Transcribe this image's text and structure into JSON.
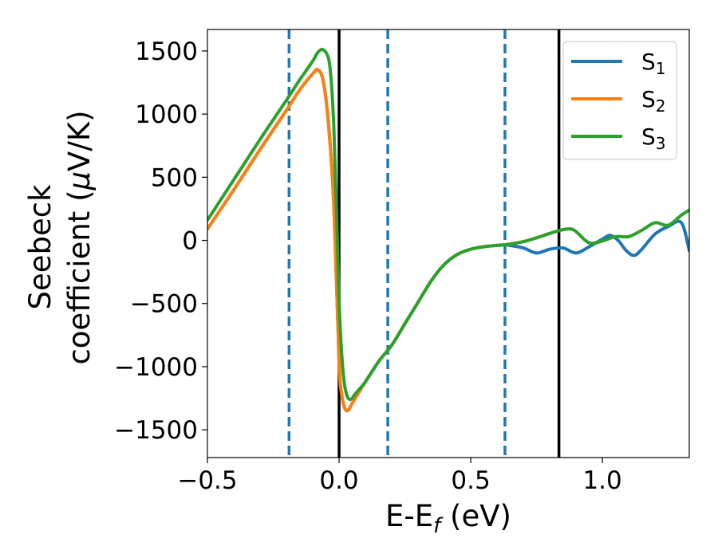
{
  "chart_data": {
    "type": "line",
    "xlabel": "E-E",
    "xlabel_sub": "f",
    "xlabel_unit": " (eV)",
    "ylabel_line1": "Seebeck",
    "ylabel_line2": "coefficient  (",
    "ylabel_mu": "μ",
    "ylabel_unit": "V/K)",
    "xlim": [
      -0.5,
      1.33
    ],
    "ylim": [
      -1720,
      1670
    ],
    "xticks": [
      -0.5,
      0.0,
      0.5,
      1.0
    ],
    "xtick_labels": [
      "−0.5",
      "0.0",
      "0.5",
      "1.0"
    ],
    "yticks": [
      -1500,
      -1000,
      -500,
      0,
      500,
      1000,
      1500
    ],
    "ytick_labels": [
      "−1500",
      "−1000",
      "−500",
      "0",
      "500",
      "1000",
      "1500"
    ],
    "grid": false,
    "legend_position": "top-right",
    "vlines_dashed": [
      -0.19,
      0.185,
      0.63
    ],
    "vlines_solid": [
      0.0,
      0.835
    ],
    "vline_dashed_color": "#1f77b4",
    "vline_solid_color": "#000000",
    "series": [
      {
        "name": "S",
        "sub": "1",
        "color": "#1f77b4",
        "x": [
          -0.5,
          -0.4,
          -0.3,
          -0.2,
          -0.15,
          -0.1,
          -0.08,
          -0.06,
          -0.04,
          -0.02,
          0.0,
          0.01,
          0.02,
          0.03,
          0.04,
          0.05,
          0.1,
          0.15,
          0.2,
          0.25,
          0.3,
          0.35,
          0.4,
          0.45,
          0.5,
          0.55,
          0.6,
          0.63,
          0.65,
          0.7,
          0.75,
          0.8,
          0.85,
          0.9,
          0.95,
          1.0,
          1.03,
          1.06,
          1.09,
          1.12,
          1.15,
          1.2,
          1.25,
          1.3,
          1.33
        ],
        "y": [
          90,
          400,
          720,
          1030,
          1190,
          1320,
          1350,
          1260,
          920,
          280,
          -960,
          -1220,
          -1320,
          -1350,
          -1330,
          -1290,
          -1120,
          -960,
          -830,
          -660,
          -490,
          -320,
          -190,
          -110,
          -70,
          -50,
          -40,
          -35,
          -40,
          -60,
          -100,
          -70,
          -60,
          -100,
          -50,
          10,
          40,
          0,
          -80,
          -120,
          -70,
          50,
          110,
          140,
          -80
        ]
      },
      {
        "name": "S",
        "sub": "2",
        "color": "#ff7f0e",
        "x": [
          -0.5,
          -0.4,
          -0.3,
          -0.2,
          -0.15,
          -0.1,
          -0.08,
          -0.06,
          -0.04,
          -0.02,
          0.0,
          0.01,
          0.02,
          0.03,
          0.04,
          0.05,
          0.1,
          0.15,
          0.2,
          0.25,
          0.3,
          0.35,
          0.4,
          0.45,
          0.5,
          0.55,
          0.6,
          0.63,
          0.7,
          0.75,
          0.8,
          0.85,
          0.88,
          0.9,
          0.95,
          1.0
        ],
        "y": [
          90,
          400,
          720,
          1030,
          1190,
          1320,
          1350,
          1260,
          920,
          280,
          -960,
          -1220,
          -1320,
          -1350,
          -1330,
          -1290,
          -1120,
          -960,
          -830,
          -660,
          -490,
          -320,
          -190,
          -110,
          -70,
          -50,
          -40,
          -35,
          -10,
          20,
          55,
          85,
          90,
          70,
          -20,
          -5
        ]
      },
      {
        "name": "S",
        "sub": "3",
        "color": "#2ca02c",
        "x": [
          -0.5,
          -0.4,
          -0.3,
          -0.2,
          -0.15,
          -0.1,
          -0.08,
          -0.06,
          -0.04,
          -0.03,
          -0.02,
          -0.01,
          0.0,
          0.01,
          0.02,
          0.03,
          0.04,
          0.05,
          0.06,
          0.1,
          0.15,
          0.2,
          0.25,
          0.3,
          0.35,
          0.4,
          0.45,
          0.5,
          0.55,
          0.6,
          0.63,
          0.7,
          0.75,
          0.8,
          0.85,
          0.88,
          0.9,
          0.95,
          1.0,
          1.05,
          1.1,
          1.15,
          1.2,
          1.25,
          1.3,
          1.33
        ],
        "y": [
          160,
          480,
          800,
          1110,
          1270,
          1420,
          1490,
          1510,
          1440,
          1270,
          900,
          250,
          -480,
          -900,
          -1130,
          -1230,
          -1260,
          -1250,
          -1220,
          -1120,
          -960,
          -830,
          -660,
          -490,
          -320,
          -190,
          -110,
          -70,
          -50,
          -40,
          -35,
          -10,
          20,
          55,
          85,
          90,
          70,
          -20,
          -5,
          30,
          30,
          80,
          140,
          120,
          200,
          240
        ]
      }
    ]
  }
}
